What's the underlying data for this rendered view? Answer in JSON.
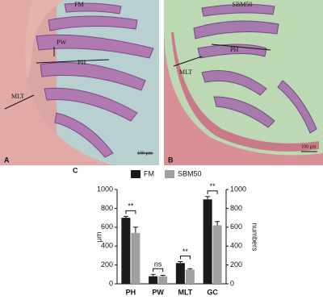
{
  "panels": [
    {
      "letter": "A",
      "title": "FM",
      "labels": [
        "PH",
        "PW",
        "MLT"
      ],
      "scale": "100 μm"
    },
    {
      "letter": "B",
      "title": "SBM50",
      "labels": [
        "PH",
        "MLT"
      ],
      "scale": "100 μm"
    }
  ],
  "chart_data": {
    "type": "bar",
    "panel": "C",
    "categories": [
      "PH",
      "PW",
      "MLT",
      "GC"
    ],
    "series": [
      {
        "name": "FM",
        "color": "#1a1a1a",
        "values": [
          700,
          80,
          220,
          895
        ],
        "errors": [
          15,
          20,
          15,
          30
        ]
      },
      {
        "name": "SBM50",
        "color": "#a0a0a0",
        "values": [
          540,
          80,
          150,
          620
        ],
        "errors": [
          60,
          10,
          10,
          40
        ]
      }
    ],
    "significance": [
      "**",
      "ns",
      "**",
      "**"
    ],
    "ylabel": "μm",
    "y2label": "numbers",
    "ylim": [
      0,
      1000
    ],
    "yticks": [
      0,
      200,
      400,
      600,
      800,
      1000
    ],
    "y2lim": [
      0,
      1000
    ],
    "y2ticks": [
      0,
      200,
      400,
      600,
      800,
      1000
    ]
  }
}
